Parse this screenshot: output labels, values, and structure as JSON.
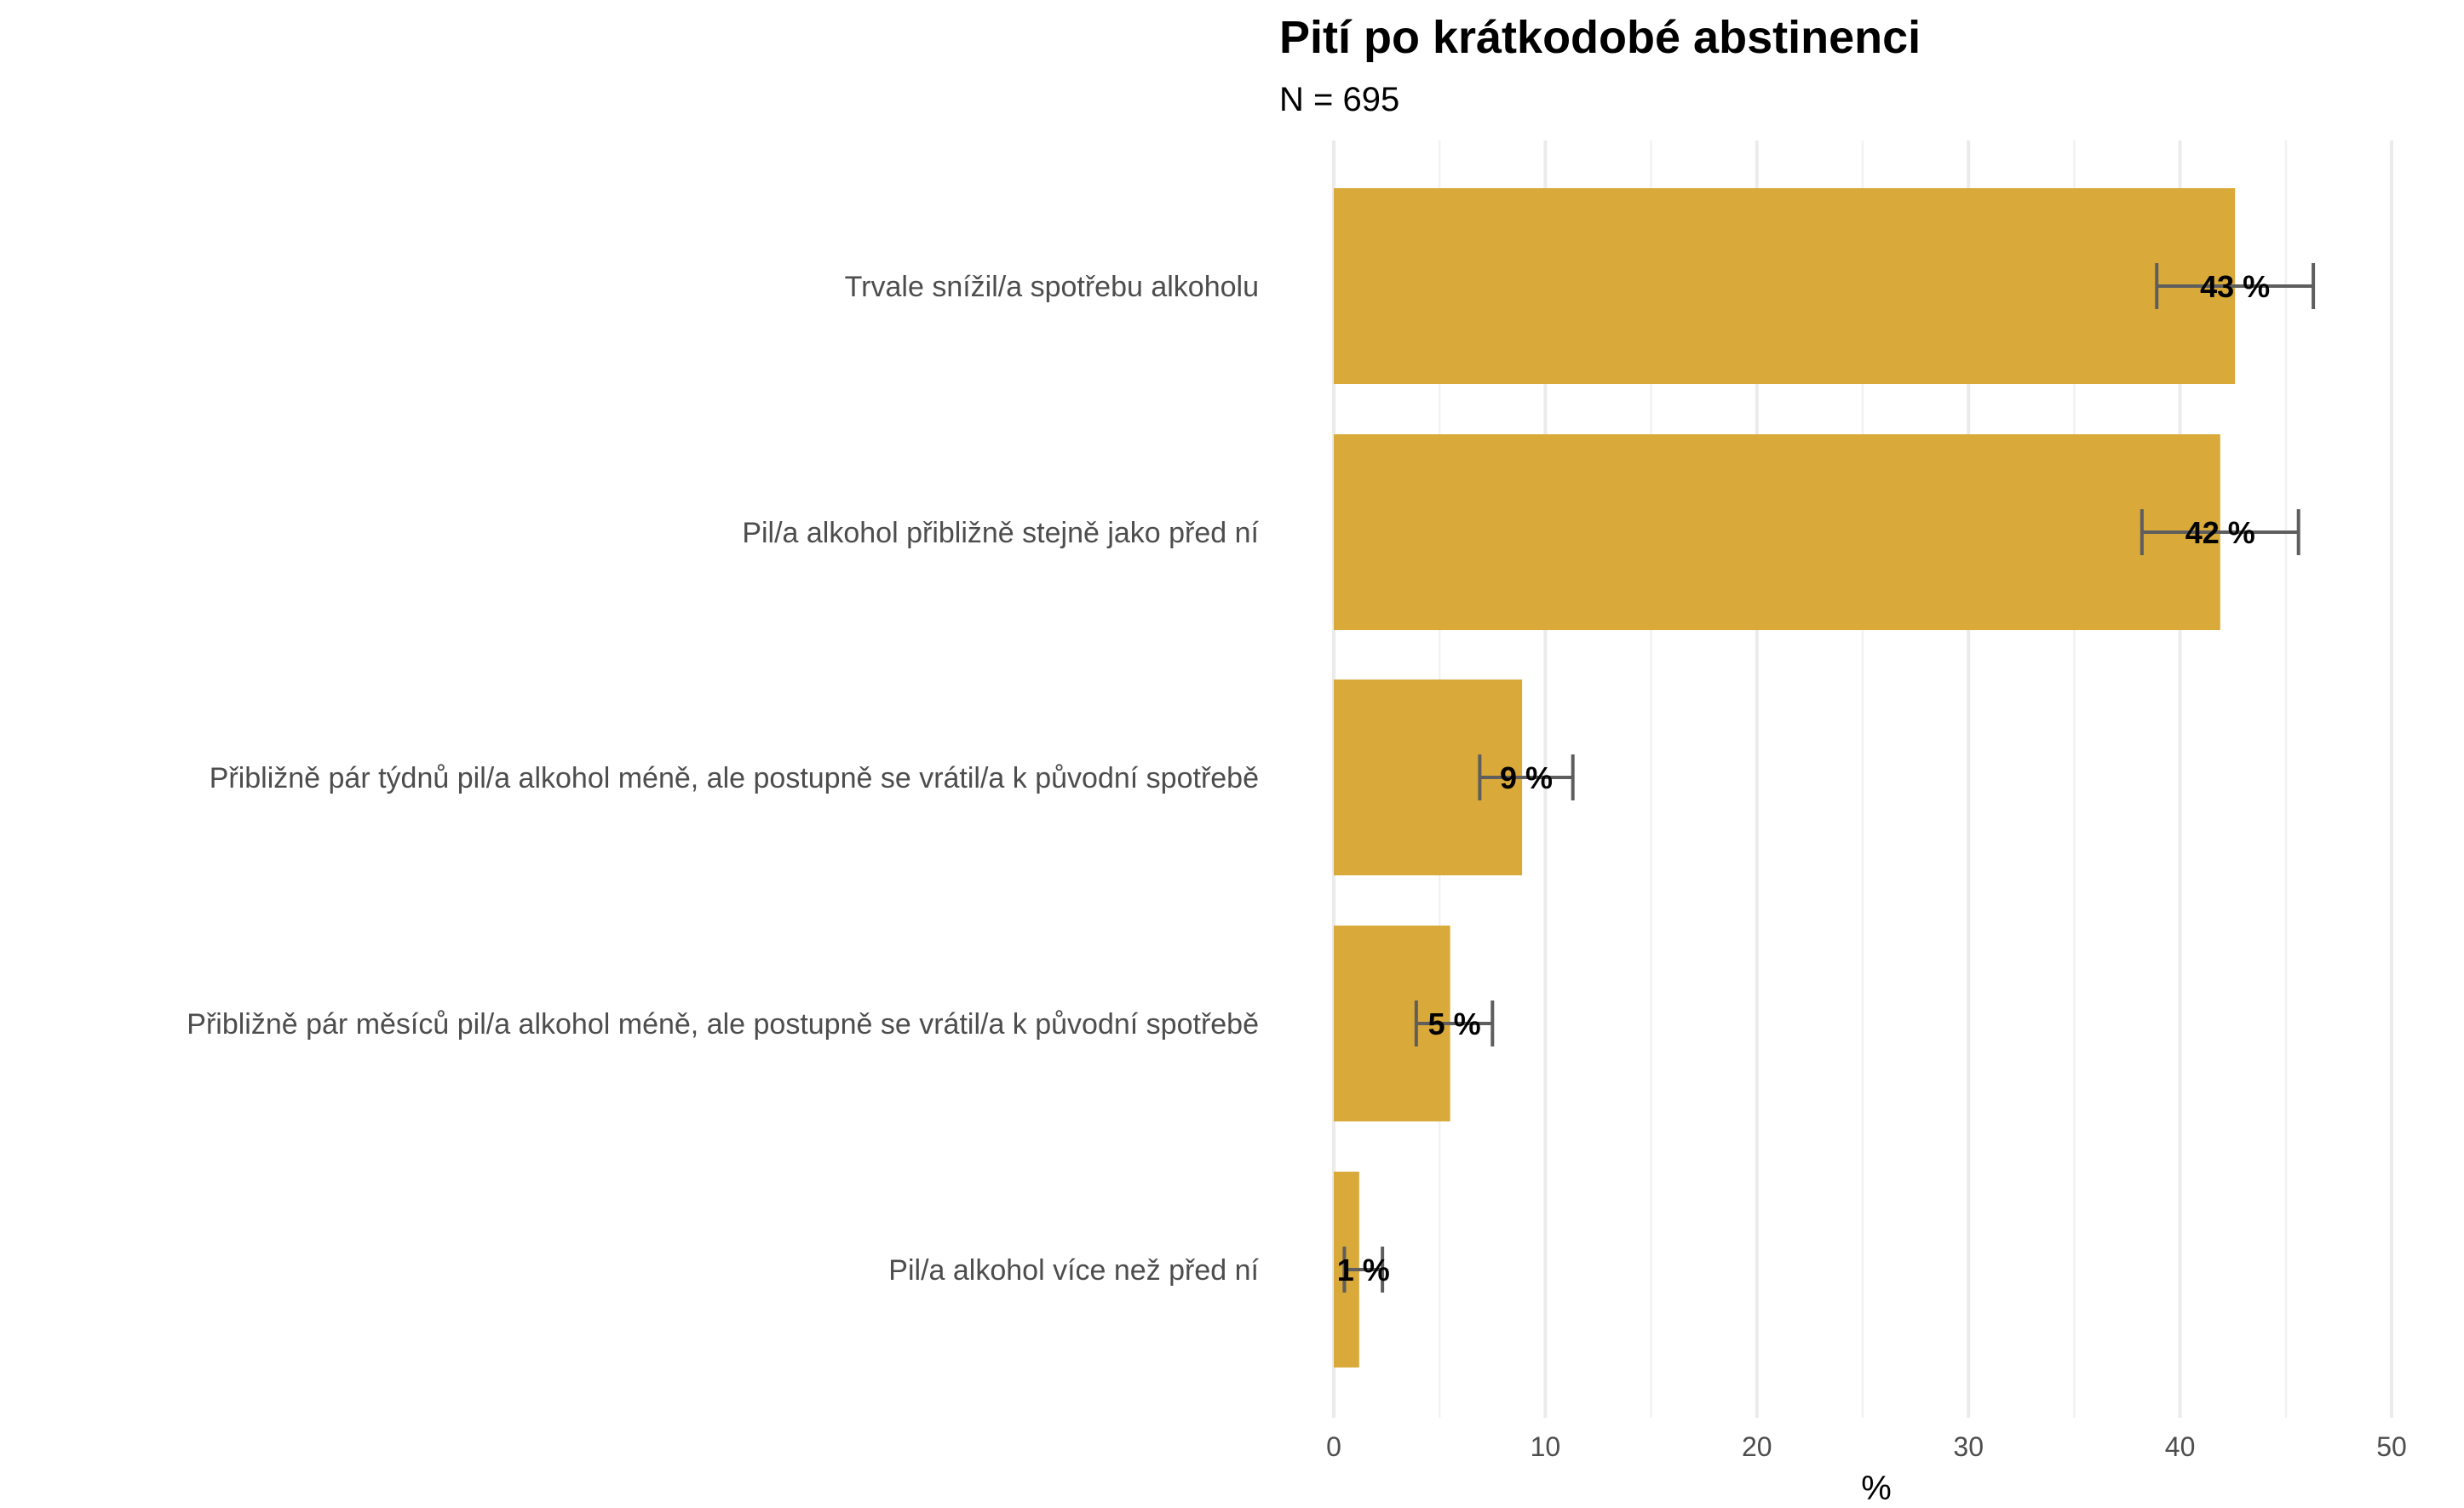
{
  "chart_data": {
    "type": "bar",
    "orientation": "horizontal",
    "title": "Pití po krátkodobé abstinenci",
    "subtitle": "N = 695",
    "xlabel": "%",
    "ylabel": "",
    "xlim": [
      0,
      50
    ],
    "x_ticks": [
      0,
      10,
      20,
      30,
      40,
      50
    ],
    "x_tick_labels": [
      "0",
      "10",
      "20",
      "30",
      "40",
      "50"
    ],
    "grid": true,
    "legend": "none",
    "bar_color": "#D9A939",
    "errorbar_color": "#5E5E5E",
    "categories": [
      "Trvale snížil/a spotřebu alkoholu",
      "Pil/a alkohol přibližně stejně jako před ní",
      "Přibližně pár týdnů pil/a alkohol méně, ale postupně se vrátil/a k původní spotřebě",
      "Přibližně pár měsíců pil/a alkohol méně, ale postupně se vrátil/a k původní spotřebě",
      "Pil/a alkohol více než před ní"
    ],
    "values": [
      42.6,
      41.9,
      8.9,
      5.5,
      1.2
    ],
    "ci_low": [
      38.9,
      38.2,
      6.9,
      3.9,
      0.5
    ],
    "ci_high": [
      46.3,
      45.6,
      11.3,
      7.5,
      2.3
    ],
    "data_labels": [
      "43 %",
      "42 %",
      "9 %",
      "5 %",
      "1 %"
    ]
  }
}
